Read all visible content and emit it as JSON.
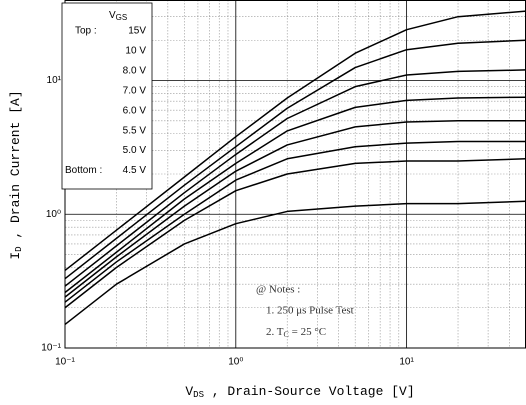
{
  "chart_data": {
    "type": "line",
    "x_label": {
      "symbol": "V",
      "sub": "DS",
      "text": " , Drain-Source Voltage  [V]"
    },
    "y_label": {
      "symbol": "I",
      "sub": "D",
      "text": " , Drain Current  [A]"
    },
    "legend_title": {
      "symbol": "V",
      "sub": "GS"
    },
    "legend_top": "Top :",
    "legend_bottom": "Bottom :",
    "notes": {
      "title": "@ Notes :",
      "line1": "1. 250 μs Pulse Test",
      "line2": {
        "prefix": "2. T",
        "sub": "C",
        "text": " = 25 °C"
      }
    },
    "x": [
      0.1,
      0.2,
      0.5,
      1,
      2,
      5,
      10,
      20,
      50
    ],
    "series": [
      {
        "name": "15V",
        "color": "#000000",
        "values": [
          0.38,
          0.76,
          1.9,
          3.8,
          7.4,
          16,
          24,
          30,
          33
        ]
      },
      {
        "name": "10 V",
        "color": "#000000",
        "values": [
          0.33,
          0.66,
          1.65,
          3.2,
          6.2,
          12.5,
          17,
          19,
          20
        ]
      },
      {
        "name": "8.0 V",
        "color": "#000000",
        "values": [
          0.29,
          0.58,
          1.45,
          2.8,
          5.2,
          9,
          11,
          11.7,
          12
        ]
      },
      {
        "name": "7.0 V",
        "color": "#000000",
        "values": [
          0.26,
          0.52,
          1.3,
          2.4,
          4.2,
          6.3,
          7.1,
          7.4,
          7.5
        ]
      },
      {
        "name": "6.0 V",
        "color": "#000000",
        "values": [
          0.24,
          0.48,
          1.15,
          2.1,
          3.3,
          4.5,
          4.9,
          5,
          5
        ]
      },
      {
        "name": "5.5 V",
        "color": "#000000",
        "values": [
          0.22,
          0.44,
          1.0,
          1.8,
          2.6,
          3.2,
          3.4,
          3.5,
          3.5
        ]
      },
      {
        "name": "5.0 V",
        "color": "#000000",
        "values": [
          0.2,
          0.4,
          0.9,
          1.5,
          2.0,
          2.4,
          2.5,
          2.5,
          2.6
        ]
      },
      {
        "name": "4.5 V",
        "color": "#000000",
        "values": [
          0.15,
          0.3,
          0.6,
          0.85,
          1.05,
          1.15,
          1.2,
          1.2,
          1.25
        ]
      }
    ],
    "xlim": [
      0.1,
      50
    ],
    "ylim": [
      0.1,
      40
    ],
    "xticks": [
      {
        "value": 0.1,
        "label": "10⁻¹"
      },
      {
        "value": 1,
        "label": "10⁰"
      },
      {
        "value": 10,
        "label": "10¹"
      }
    ],
    "yticks": [
      {
        "value": 0.1,
        "label": "10⁻¹"
      },
      {
        "value": 1,
        "label": "10⁰"
      },
      {
        "value": 10,
        "label": "10¹"
      }
    ],
    "log_x": true,
    "log_y": true,
    "grid": true,
    "minor_grid": true,
    "legend": "upper left"
  }
}
